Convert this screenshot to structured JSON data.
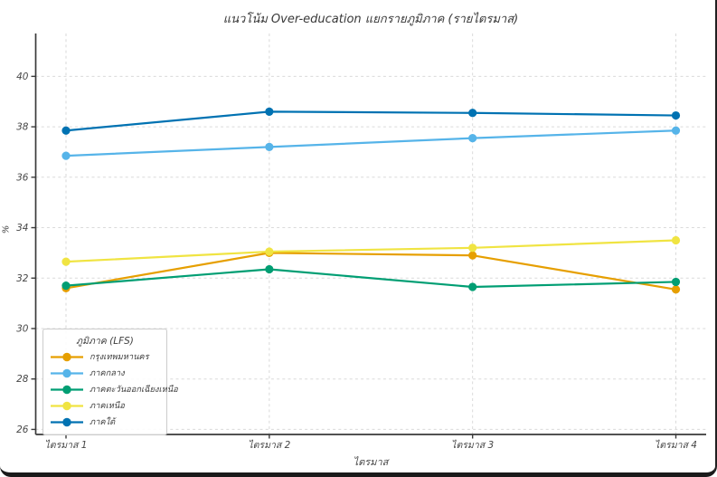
{
  "chart_data": {
    "type": "line",
    "title": "แนวโน้ม Over-education แยกรายภูมิภาค (รายไตรมาส)",
    "xlabel": "ไตรมาส",
    "ylabel": "%",
    "categories": [
      "ไตรมาส 1",
      "ไตรมาส 2",
      "ไตรมาส 3",
      "ไตรมาส 4"
    ],
    "yticks": [
      26,
      28,
      30,
      32,
      34,
      36,
      38,
      40
    ],
    "ylim": [
      25.8,
      41.7
    ],
    "grid": true,
    "grid_style": "dashed",
    "legend": {
      "title": "ภูมิภาค (LFS)",
      "position": "lower-left"
    },
    "series": [
      {
        "name": "กรุงเทพมหานคร",
        "color": "#E69F00",
        "values": [
          31.6,
          33.0,
          32.9,
          31.55
        ]
      },
      {
        "name": "ภาคกลาง",
        "color": "#56B4E9",
        "values": [
          36.85,
          37.2,
          37.55,
          37.85
        ]
      },
      {
        "name": "ภาคตะวันออกเฉียงเหนือ",
        "color": "#009E73",
        "values": [
          31.7,
          32.35,
          31.65,
          31.85
        ]
      },
      {
        "name": "ภาคเหนือ",
        "color": "#F0E442",
        "values": [
          32.65,
          33.05,
          33.2,
          33.5
        ]
      },
      {
        "name": "ภาคใต้",
        "color": "#0072B2",
        "values": [
          37.85,
          38.6,
          38.55,
          38.45
        ]
      }
    ]
  }
}
